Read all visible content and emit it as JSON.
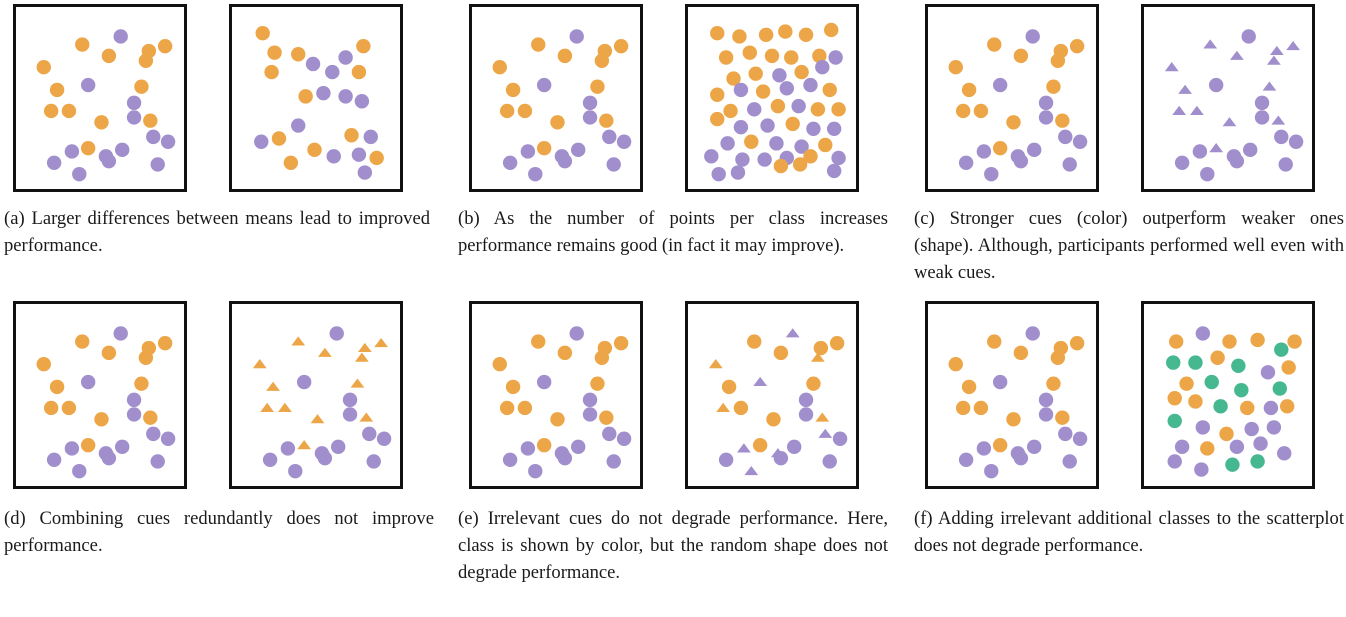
{
  "colors": {
    "orange": "#eda647",
    "purple": "#a18fcd",
    "green": "#46b88f",
    "border": "#111111"
  },
  "figure": {
    "captions": {
      "a": "(a) Larger differences between means lead to improved performance.",
      "b": "(b) As the number of points per class increases performance remains good (in fact it may improve).",
      "c": "(c)  Stronger cues (color) outperform weaker ones (shape).  Although, participants performed well even with weak cues.",
      "d": "(d) Combining cues redundantly does not improve performance.",
      "e": "(e) Irrelevant cues do not degrade performance. Here, class is shown by color, but the random shape does not degrade performance.",
      "f": "(f) Adding irrelevant additional classes to the scatterplot does not degrade performance."
    }
  },
  "panels": [
    {
      "id": "a-1",
      "base": "A",
      "mode": "color",
      "shape": "circle"
    },
    {
      "id": "a-2",
      "base": "A2",
      "mode": "color",
      "shape": "circle"
    },
    {
      "id": "b-1",
      "base": "A",
      "mode": "color",
      "shape": "circle"
    },
    {
      "id": "b-2",
      "base": "B2",
      "mode": "color",
      "shape": "circle"
    },
    {
      "id": "c-1",
      "base": "A",
      "mode": "color",
      "shape": "circle"
    },
    {
      "id": "c-2",
      "base": "A",
      "mode": "shape",
      "shape": "triangle-vs-circle"
    },
    {
      "id": "d-1",
      "base": "A",
      "mode": "color",
      "shape": "circle"
    },
    {
      "id": "d-2",
      "base": "A",
      "mode": "color+shape",
      "shape": "triangle-orange"
    },
    {
      "id": "e-1",
      "base": "A",
      "mode": "color",
      "shape": "circle"
    },
    {
      "id": "e-2",
      "base": "A",
      "mode": "color+random-shape",
      "shape": "random"
    },
    {
      "id": "f-1",
      "base": "A",
      "mode": "color",
      "shape": "circle"
    },
    {
      "id": "f-2",
      "base": "F2",
      "mode": "three-classes",
      "shape": "circle"
    }
  ],
  "point_sets": {
    "A": [
      [
        0.38,
        0.17,
        "o"
      ],
      [
        0.64,
        0.12,
        "p"
      ],
      [
        0.83,
        0.21,
        "o"
      ],
      [
        0.94,
        0.18,
        "o"
      ],
      [
        0.12,
        0.31,
        "o"
      ],
      [
        0.56,
        0.24,
        "o"
      ],
      [
        0.81,
        0.27,
        "o"
      ],
      [
        0.78,
        0.43,
        "o"
      ],
      [
        0.73,
        0.53,
        "p"
      ],
      [
        0.42,
        0.42,
        "p"
      ],
      [
        0.21,
        0.45,
        "o"
      ],
      [
        0.17,
        0.58,
        "o"
      ],
      [
        0.29,
        0.58,
        "o"
      ],
      [
        0.51,
        0.65,
        "o"
      ],
      [
        0.84,
        0.64,
        "o"
      ],
      [
        0.73,
        0.62,
        "p"
      ],
      [
        0.86,
        0.74,
        "p"
      ],
      [
        0.96,
        0.77,
        "p"
      ],
      [
        0.42,
        0.81,
        "o"
      ],
      [
        0.31,
        0.83,
        "p"
      ],
      [
        0.65,
        0.82,
        "p"
      ],
      [
        0.54,
        0.86,
        "p"
      ],
      [
        0.89,
        0.91,
        "p"
      ],
      [
        0.19,
        0.9,
        "p"
      ],
      [
        0.36,
        0.97,
        "p"
      ],
      [
        0.56,
        0.89,
        "p"
      ]
    ],
    "A2": [
      [
        0.14,
        0.1,
        "o"
      ],
      [
        0.22,
        0.22,
        "o"
      ],
      [
        0.38,
        0.23,
        "o"
      ],
      [
        0.2,
        0.34,
        "o"
      ],
      [
        0.48,
        0.29,
        "p"
      ],
      [
        0.7,
        0.25,
        "p"
      ],
      [
        0.82,
        0.18,
        "o"
      ],
      [
        0.79,
        0.34,
        "o"
      ],
      [
        0.61,
        0.34,
        "p"
      ],
      [
        0.55,
        0.47,
        "p"
      ],
      [
        0.43,
        0.49,
        "o"
      ],
      [
        0.7,
        0.49,
        "p"
      ],
      [
        0.81,
        0.52,
        "p"
      ],
      [
        0.38,
        0.67,
        "p"
      ],
      [
        0.74,
        0.73,
        "o"
      ],
      [
        0.87,
        0.74,
        "p"
      ],
      [
        0.13,
        0.77,
        "p"
      ],
      [
        0.25,
        0.75,
        "o"
      ],
      [
        0.79,
        0.85,
        "p"
      ],
      [
        0.33,
        0.9,
        "o"
      ],
      [
        0.91,
        0.87,
        "o"
      ],
      [
        0.83,
        0.96,
        "p"
      ],
      [
        0.62,
        0.86,
        "p"
      ],
      [
        0.49,
        0.82,
        "o"
      ]
    ],
    "B2": [
      [
        0.13,
        0.1,
        "o"
      ],
      [
        0.28,
        0.12,
        "o"
      ],
      [
        0.46,
        0.11,
        "o"
      ],
      [
        0.59,
        0.09,
        "o"
      ],
      [
        0.73,
        0.11,
        "o"
      ],
      [
        0.9,
        0.08,
        "o"
      ],
      [
        0.19,
        0.25,
        "o"
      ],
      [
        0.35,
        0.22,
        "o"
      ],
      [
        0.5,
        0.24,
        "o"
      ],
      [
        0.63,
        0.25,
        "o"
      ],
      [
        0.82,
        0.24,
        "o"
      ],
      [
        0.93,
        0.25,
        "p"
      ],
      [
        0.24,
        0.38,
        "o"
      ],
      [
        0.39,
        0.35,
        "o"
      ],
      [
        0.55,
        0.36,
        "p"
      ],
      [
        0.7,
        0.34,
        "o"
      ],
      [
        0.84,
        0.31,
        "p"
      ],
      [
        0.13,
        0.48,
        "o"
      ],
      [
        0.29,
        0.45,
        "p"
      ],
      [
        0.44,
        0.46,
        "o"
      ],
      [
        0.6,
        0.44,
        "p"
      ],
      [
        0.76,
        0.42,
        "p"
      ],
      [
        0.89,
        0.45,
        "o"
      ],
      [
        0.22,
        0.58,
        "o"
      ],
      [
        0.38,
        0.57,
        "p"
      ],
      [
        0.54,
        0.55,
        "o"
      ],
      [
        0.68,
        0.55,
        "p"
      ],
      [
        0.81,
        0.57,
        "o"
      ],
      [
        0.95,
        0.57,
        "o"
      ],
      [
        0.13,
        0.63,
        "o"
      ],
      [
        0.29,
        0.68,
        "p"
      ],
      [
        0.47,
        0.67,
        "p"
      ],
      [
        0.64,
        0.66,
        "o"
      ],
      [
        0.78,
        0.69,
        "p"
      ],
      [
        0.92,
        0.69,
        "p"
      ],
      [
        0.2,
        0.78,
        "p"
      ],
      [
        0.36,
        0.77,
        "o"
      ],
      [
        0.53,
        0.78,
        "p"
      ],
      [
        0.7,
        0.8,
        "p"
      ],
      [
        0.86,
        0.79,
        "o"
      ],
      [
        0.09,
        0.86,
        "p"
      ],
      [
        0.3,
        0.88,
        "p"
      ],
      [
        0.45,
        0.88,
        "p"
      ],
      [
        0.6,
        0.87,
        "p"
      ],
      [
        0.76,
        0.86,
        "o"
      ],
      [
        0.95,
        0.87,
        "p"
      ],
      [
        0.14,
        0.97,
        "p"
      ],
      [
        0.27,
        0.96,
        "p"
      ],
      [
        0.56,
        0.92,
        "o"
      ],
      [
        0.69,
        0.91,
        "o"
      ],
      [
        0.92,
        0.95,
        "p"
      ]
    ],
    "F2": [
      [
        0.15,
        0.17,
        "o"
      ],
      [
        0.33,
        0.12,
        "p"
      ],
      [
        0.51,
        0.17,
        "o"
      ],
      [
        0.7,
        0.16,
        "o"
      ],
      [
        0.86,
        0.22,
        "g"
      ],
      [
        0.95,
        0.17,
        "o"
      ],
      [
        0.13,
        0.3,
        "g"
      ],
      [
        0.28,
        0.3,
        "g"
      ],
      [
        0.43,
        0.27,
        "o"
      ],
      [
        0.57,
        0.32,
        "g"
      ],
      [
        0.77,
        0.36,
        "p"
      ],
      [
        0.91,
        0.33,
        "o"
      ],
      [
        0.22,
        0.43,
        "o"
      ],
      [
        0.39,
        0.42,
        "g"
      ],
      [
        0.59,
        0.47,
        "g"
      ],
      [
        0.85,
        0.46,
        "g"
      ],
      [
        0.14,
        0.52,
        "o"
      ],
      [
        0.28,
        0.54,
        "o"
      ],
      [
        0.45,
        0.57,
        "g"
      ],
      [
        0.63,
        0.58,
        "o"
      ],
      [
        0.79,
        0.58,
        "p"
      ],
      [
        0.9,
        0.57,
        "o"
      ],
      [
        0.14,
        0.66,
        "g"
      ],
      [
        0.33,
        0.7,
        "p"
      ],
      [
        0.49,
        0.74,
        "o"
      ],
      [
        0.66,
        0.71,
        "p"
      ],
      [
        0.81,
        0.7,
        "p"
      ],
      [
        0.19,
        0.82,
        "p"
      ],
      [
        0.36,
        0.83,
        "o"
      ],
      [
        0.56,
        0.82,
        "p"
      ],
      [
        0.72,
        0.8,
        "p"
      ],
      [
        0.88,
        0.86,
        "p"
      ],
      [
        0.14,
        0.91,
        "p"
      ],
      [
        0.32,
        0.96,
        "p"
      ],
      [
        0.53,
        0.93,
        "g"
      ],
      [
        0.7,
        0.91,
        "g"
      ]
    ]
  }
}
